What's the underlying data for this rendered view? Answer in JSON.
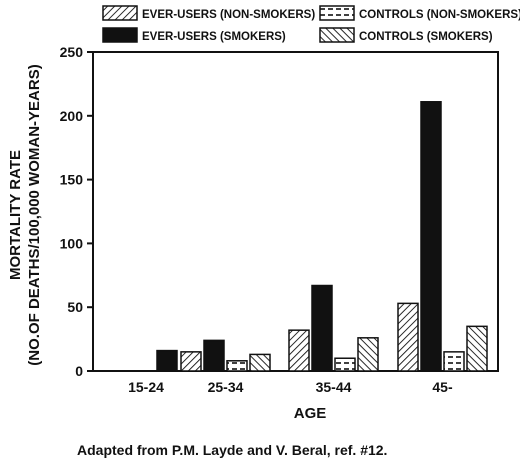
{
  "chart_data": {
    "type": "bar",
    "categories": [
      "15-24",
      "25-34",
      "35-44",
      "45-"
    ],
    "series": [
      {
        "name": "EVER-USERS (NON-SMOKERS)",
        "pattern": "diagonal-forward",
        "values": [
          null,
          15,
          32,
          53
        ]
      },
      {
        "name": "EVER-USERS (SMOKERS)",
        "pattern": "solid",
        "values": [
          16,
          24,
          67,
          211
        ]
      },
      {
        "name": "CONTROLS (NON-SMOKERS)",
        "pattern": "dashed-horizontal",
        "values": [
          null,
          8,
          10,
          15
        ]
      },
      {
        "name": "CONTROLS (SMOKERS)",
        "pattern": "diagonal-back",
        "values": [
          null,
          13,
          26,
          35
        ]
      }
    ],
    "xlabel": "AGE",
    "ylabel_line1": "MORTALITY RATE",
    "ylabel_line2": "(NO.OF DEATHS/100,000 WOMAN-YEARS)",
    "ylim": [
      0,
      250
    ],
    "yticks": [
      0,
      50,
      100,
      150,
      200,
      250
    ],
    "grid": false,
    "legend_position": "top"
  },
  "caption": "Adapted from P.M. Layde and V. Beral, ref. #12.",
  "colors": {
    "ink": "#111111",
    "background": "#ffffff"
  }
}
